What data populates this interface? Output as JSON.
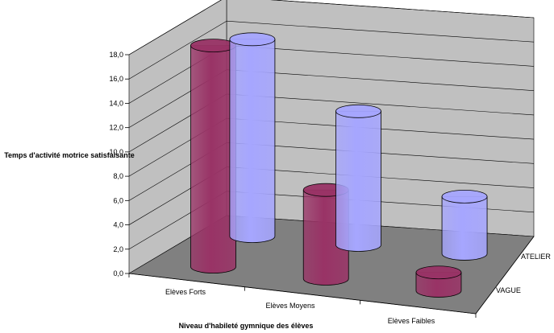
{
  "chart_data": {
    "type": "bar",
    "style": "3d-cylinder",
    "categories": [
      "Elèves Forts",
      "Elèves Moyens",
      "Elèves Faibles"
    ],
    "series": [
      {
        "name": "VAGUE",
        "values": [
          16.2,
          11.0,
          4.7
        ],
        "color": "#a6a6ff"
      },
      {
        "name": "ATELIER",
        "values": [
          18.2,
          7.3,
          1.5
        ],
        "color": "#993366"
      }
    ],
    "ylabel": "Temps d'activité motrice satisfaisante",
    "xlabel": "Niveau d'habileté gymnique des élèves",
    "yticks": [
      "0,0",
      "2,0",
      "4,0",
      "6,0",
      "8,0",
      "10,0",
      "12,0",
      "14,0",
      "16,0",
      "18,0"
    ],
    "ylim": [
      0,
      18
    ],
    "grid": true,
    "wall_color": "#c0c0c0",
    "floor_color": "#808080"
  }
}
